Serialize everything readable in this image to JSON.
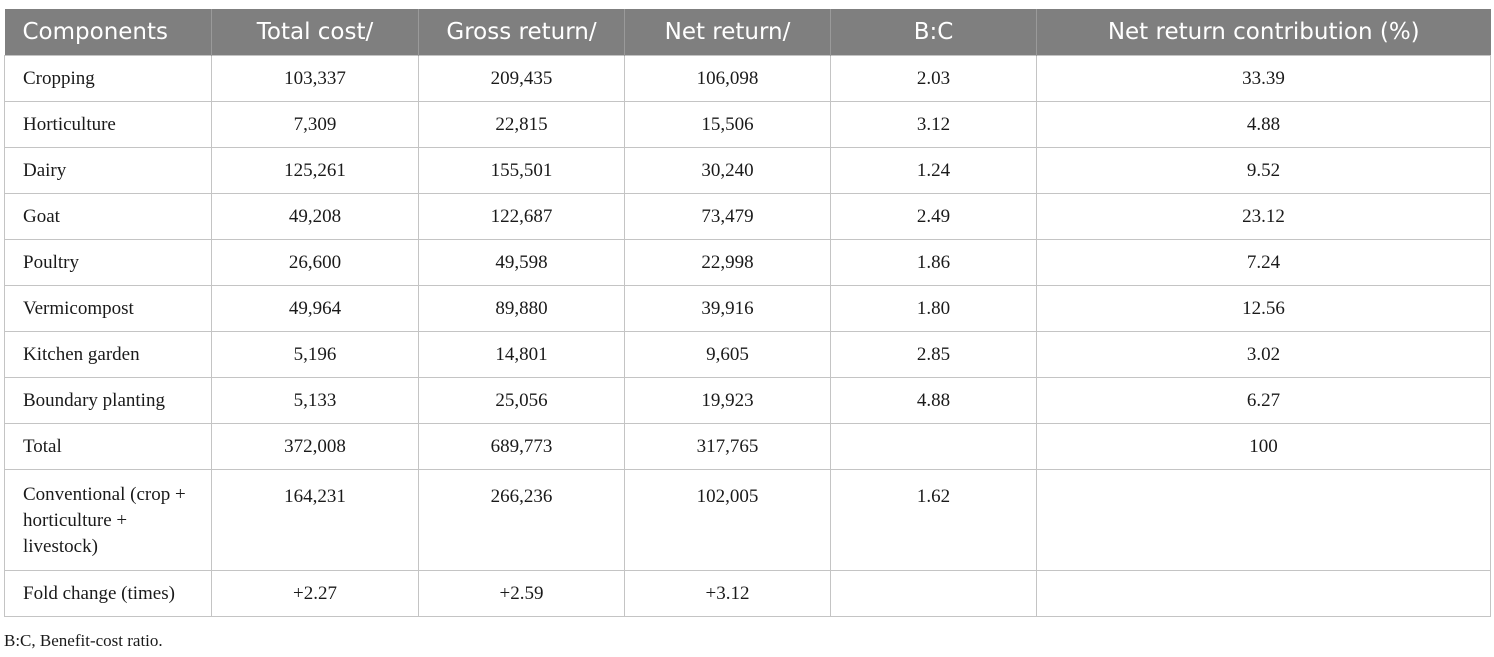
{
  "table": {
    "headers": [
      "Components",
      "Total cost/",
      "Gross return/",
      "Net return/",
      "B:C",
      "Net return contribution (%)"
    ],
    "rows": [
      [
        "Cropping",
        "103,337",
        "209,435",
        "106,098",
        "2.03",
        "33.39"
      ],
      [
        "Horticulture",
        "7,309",
        "22,815",
        "15,506",
        "3.12",
        "4.88"
      ],
      [
        "Dairy",
        "125,261",
        "155,501",
        "30,240",
        "1.24",
        "9.52"
      ],
      [
        "Goat",
        "49,208",
        "122,687",
        "73,479",
        "2.49",
        "23.12"
      ],
      [
        "Poultry",
        "26,600",
        "49,598",
        "22,998",
        "1.86",
        "7.24"
      ],
      [
        "Vermicompost",
        "49,964",
        "89,880",
        "39,916",
        "1.80",
        "12.56"
      ],
      [
        "Kitchen garden",
        "5,196",
        "14,801",
        "9,605",
        "2.85",
        "3.02"
      ],
      [
        "Boundary planting",
        "5,133",
        "25,056",
        "19,923",
        "4.88",
        "6.27"
      ],
      [
        "Total",
        "372,008",
        "689,773",
        "317,765",
        "",
        "100"
      ],
      [
        "Conventional (crop + horticulture + livestock)",
        "164,231",
        "266,236",
        "102,005",
        "1.62",
        ""
      ],
      [
        "Fold change (times)",
        "+2.27",
        "+2.59",
        "+3.12",
        "",
        ""
      ]
    ]
  },
  "footnote": "B:C, Benefit-cost ratio.",
  "colors": {
    "header_bg": "#7f7f7f",
    "header_text": "#ffffff",
    "grid": "#c4c4c4"
  }
}
